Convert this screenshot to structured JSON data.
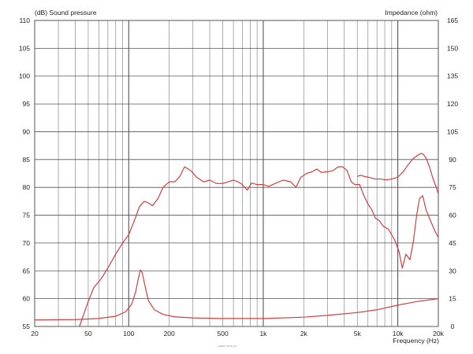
{
  "chart_data": {
    "type": "line",
    "left_axis_title": "(dB)  Sound pressure",
    "right_axis_title": "Impedance  (ohm)",
    "x_axis_title": "Frequency  (Hz)",
    "x_scale": "log",
    "xlim": [
      20,
      20000
    ],
    "ylim_left": [
      55,
      110
    ],
    "ylim_right": [
      0,
      165
    ],
    "grid": true,
    "watermark": "audio-tech.pl",
    "x_tick_labels": [
      {
        "value": 20,
        "label": "20"
      },
      {
        "value": 50,
        "label": "50"
      },
      {
        "value": 100,
        "label": "100"
      },
      {
        "value": 200,
        "label": "200"
      },
      {
        "value": 500,
        "label": "500"
      },
      {
        "value": 1000,
        "label": "1k"
      },
      {
        "value": 2000,
        "label": "2k"
      },
      {
        "value": 5000,
        "label": "5k"
      },
      {
        "value": 10000,
        "label": "10k"
      },
      {
        "value": 20000,
        "label": "20k"
      }
    ],
    "left_tick_labels": [
      "55",
      "60",
      "65",
      "70",
      "75",
      "80",
      "85",
      "90",
      "95",
      "100",
      "105",
      "110"
    ],
    "right_tick_labels": [
      "0",
      "15",
      "30",
      "45",
      "60",
      "75",
      "90",
      "105",
      "120",
      "135",
      "150",
      "165"
    ],
    "series": [
      {
        "axis": "left",
        "color": "#d04040",
        "points": [
          [
            43,
            55
          ],
          [
            46,
            57
          ],
          [
            50,
            59.5
          ],
          [
            55,
            62
          ],
          [
            62,
            63.5
          ],
          [
            70,
            65.5
          ],
          [
            80,
            68
          ],
          [
            90,
            70
          ],
          [
            100,
            71.5
          ],
          [
            110,
            74
          ],
          [
            120,
            76.5
          ],
          [
            130,
            77.5
          ],
          [
            140,
            77.2
          ],
          [
            150,
            76.7
          ],
          [
            165,
            78
          ],
          [
            180,
            80
          ],
          [
            200,
            81
          ],
          [
            220,
            81
          ],
          [
            240,
            82
          ],
          [
            260,
            83.7
          ],
          [
            290,
            83
          ],
          [
            320,
            81.8
          ],
          [
            360,
            81
          ],
          [
            400,
            81.3
          ],
          [
            450,
            80.7
          ],
          [
            500,
            80.7
          ],
          [
            550,
            81
          ],
          [
            600,
            81.3
          ],
          [
            650,
            81
          ],
          [
            700,
            80.5
          ],
          [
            760,
            79.5
          ],
          [
            820,
            80.8
          ],
          [
            900,
            80.5
          ],
          [
            1000,
            80.5
          ],
          [
            1100,
            80.2
          ],
          [
            1200,
            80.6
          ],
          [
            1400,
            81.3
          ],
          [
            1600,
            81
          ],
          [
            1750,
            80
          ],
          [
            1900,
            81.8
          ],
          [
            2100,
            82.5
          ],
          [
            2300,
            82.8
          ],
          [
            2500,
            83.3
          ],
          [
            2700,
            82.7
          ],
          [
            3000,
            82.8
          ],
          [
            3300,
            83
          ],
          [
            3600,
            83.7
          ],
          [
            3900,
            83.7
          ],
          [
            4200,
            83
          ],
          [
            4500,
            81
          ],
          [
            4800,
            80.5
          ],
          [
            5200,
            80.5
          ],
          [
            5600,
            78.5
          ],
          [
            6000,
            77
          ],
          [
            6400,
            76
          ],
          [
            6800,
            74.5
          ],
          [
            7300,
            74
          ],
          [
            7800,
            73
          ],
          [
            8500,
            72.5
          ],
          [
            9500,
            70.5
          ],
          [
            10200,
            68.5
          ],
          [
            10800,
            65.5
          ],
          [
            11500,
            68
          ],
          [
            12300,
            67
          ],
          [
            13000,
            70
          ],
          [
            13800,
            75
          ],
          [
            14500,
            78
          ],
          [
            15300,
            78.5
          ],
          [
            16200,
            76
          ],
          [
            17500,
            74
          ],
          [
            19000,
            72
          ],
          [
            20000,
            71
          ]
        ]
      },
      {
        "axis": "right",
        "color": "#d04040",
        "points": [
          [
            20,
            3.5
          ],
          [
            40,
            3.7
          ],
          [
            60,
            4.3
          ],
          [
            80,
            5.5
          ],
          [
            95,
            8
          ],
          [
            105,
            12
          ],
          [
            112,
            18
          ],
          [
            118,
            26
          ],
          [
            122,
            30.5
          ],
          [
            126,
            29
          ],
          [
            132,
            22
          ],
          [
            140,
            14
          ],
          [
            155,
            9
          ],
          [
            180,
            6.5
          ],
          [
            220,
            5.2
          ],
          [
            300,
            4.6
          ],
          [
            500,
            4.3
          ],
          [
            1000,
            4.3
          ],
          [
            2000,
            5
          ],
          [
            3000,
            6
          ],
          [
            5000,
            7.5
          ],
          [
            7000,
            9
          ],
          [
            10000,
            11.5
          ],
          [
            14000,
            13.5
          ],
          [
            20000,
            15
          ]
        ]
      },
      {
        "axis": "right",
        "color": "#d04040",
        "points": [
          [
            5000,
            81
          ],
          [
            5300,
            81.5
          ],
          [
            5700,
            80.8
          ],
          [
            6200,
            80.3
          ],
          [
            6800,
            79.5
          ],
          [
            7500,
            79.5
          ],
          [
            8200,
            79
          ],
          [
            9000,
            79.5
          ],
          [
            10000,
            80.5
          ],
          [
            11000,
            83.5
          ],
          [
            12000,
            87.5
          ],
          [
            13000,
            90.5
          ],
          [
            14000,
            92.2
          ],
          [
            14800,
            93.3
          ],
          [
            15500,
            92.8
          ],
          [
            16300,
            90.5
          ],
          [
            17200,
            86
          ],
          [
            18200,
            80
          ],
          [
            19200,
            75.5
          ],
          [
            20000,
            71.5
          ]
        ]
      }
    ]
  }
}
